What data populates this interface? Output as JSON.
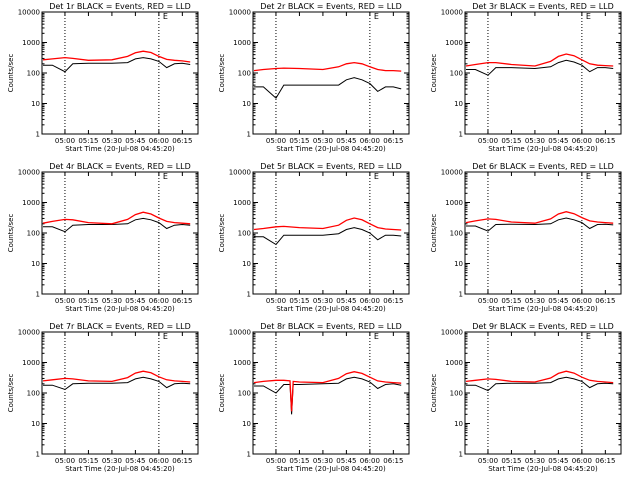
{
  "chart_data": [
    {
      "type": "line",
      "title": "Det 1r BLACK = Events, RED = LLD",
      "xlabel": "Start Time (20-Jul-08 04:45:20)",
      "ylabel": "Counts/sec",
      "yscale": "log",
      "ylim": [
        1,
        10000
      ],
      "yticks": [
        "1",
        "10",
        "100",
        "1000",
        "10000"
      ],
      "xlim": [
        "04:45:20",
        "06:25"
      ],
      "xticks": [
        "05:00",
        "05:15",
        "05:30",
        "05:45",
        "06:00",
        "06:15"
      ],
      "vlines": [
        "05:00",
        "06:00"
      ],
      "marker": "E",
      "x": [
        "04:46",
        "04:52",
        "05:00",
        "05:05",
        "05:15",
        "05:30",
        "05:40",
        "05:45",
        "05:50",
        "05:55",
        "06:00",
        "06:05",
        "06:10",
        "06:15",
        "06:20"
      ],
      "series": [
        {
          "name": "Events",
          "color": "#000000",
          "values": [
            180,
            180,
            110,
            200,
            210,
            210,
            220,
            290,
            320,
            290,
            240,
            150,
            200,
            210,
            190
          ]
        },
        {
          "name": "LLD",
          "color": "#ff0000",
          "values": [
            270,
            290,
            320,
            300,
            260,
            270,
            350,
            460,
            520,
            470,
            350,
            280,
            260,
            250,
            230
          ]
        }
      ]
    },
    {
      "type": "line",
      "title": "Det 2r BLACK = Events, RED = LLD",
      "xlabel": "Start Time (20-Jul-08 04:45:20)",
      "ylabel": "Counts/sec",
      "yscale": "log",
      "ylim": [
        1,
        10000
      ],
      "yticks": [
        "1",
        "10",
        "100",
        "1000",
        "10000"
      ],
      "xlim": [
        "04:45:20",
        "06:25"
      ],
      "xticks": [
        "05:00",
        "05:15",
        "05:30",
        "05:45",
        "06:00",
        "06:15"
      ],
      "vlines": [
        "05:00",
        "06:00"
      ],
      "marker": "E",
      "x": [
        "04:46",
        "04:52",
        "05:00",
        "05:05",
        "05:15",
        "05:30",
        "05:40",
        "05:45",
        "05:50",
        "05:55",
        "06:00",
        "06:05",
        "06:10",
        "06:15",
        "06:20"
      ],
      "series": [
        {
          "name": "Events",
          "color": "#000000",
          "values": [
            35,
            35,
            15,
            40,
            40,
            40,
            40,
            60,
            70,
            60,
            45,
            25,
            35,
            35,
            30
          ]
        },
        {
          "name": "LLD",
          "color": "#ff0000",
          "values": [
            120,
            130,
            140,
            145,
            140,
            130,
            160,
            200,
            220,
            200,
            160,
            130,
            120,
            120,
            115
          ]
        }
      ]
    },
    {
      "type": "line",
      "title": "Det 3r BLACK = Events, RED = LLD",
      "xlabel": "Start Time (20-Jul-08 04:45:20)",
      "ylabel": "Counts/sec",
      "yscale": "log",
      "ylim": [
        1,
        10000
      ],
      "yticks": [
        "1",
        "10",
        "100",
        "1000",
        "10000"
      ],
      "xlim": [
        "04:45:20",
        "06:25"
      ],
      "xticks": [
        "05:00",
        "05:15",
        "05:30",
        "05:45",
        "06:00",
        "06:15"
      ],
      "vlines": [
        "05:00",
        "06:00"
      ],
      "marker": "E",
      "x": [
        "04:46",
        "04:52",
        "05:00",
        "05:05",
        "05:15",
        "05:30",
        "05:40",
        "05:45",
        "05:50",
        "05:55",
        "06:00",
        "06:05",
        "06:10",
        "06:15",
        "06:20"
      ],
      "series": [
        {
          "name": "Events",
          "color": "#000000",
          "values": [
            130,
            130,
            85,
            150,
            150,
            140,
            160,
            220,
            260,
            230,
            180,
            110,
            150,
            150,
            140
          ]
        },
        {
          "name": "LLD",
          "color": "#ff0000",
          "values": [
            170,
            190,
            220,
            220,
            190,
            170,
            240,
            350,
            420,
            370,
            270,
            200,
            180,
            175,
            170
          ]
        }
      ]
    },
    {
      "type": "line",
      "title": "Det 4r BLACK = Events, RED = LLD",
      "xlabel": "Start Time (20-Jul-08 04:45:20)",
      "ylabel": "Counts/sec",
      "yscale": "log",
      "ylim": [
        1,
        10000
      ],
      "yticks": [
        "1",
        "10",
        "100",
        "1000",
        "10000"
      ],
      "xlim": [
        "04:45:20",
        "06:25"
      ],
      "xticks": [
        "05:00",
        "05:15",
        "05:30",
        "05:45",
        "06:00",
        "06:15"
      ],
      "vlines": [
        "05:00",
        "06:00"
      ],
      "marker": "E",
      "x": [
        "04:46",
        "04:52",
        "05:00",
        "05:05",
        "05:15",
        "05:30",
        "05:40",
        "05:45",
        "05:50",
        "05:55",
        "06:00",
        "06:05",
        "06:10",
        "06:15",
        "06:20"
      ],
      "series": [
        {
          "name": "Events",
          "color": "#000000",
          "values": [
            160,
            160,
            110,
            180,
            190,
            190,
            200,
            270,
            300,
            270,
            220,
            140,
            180,
            190,
            180
          ]
        },
        {
          "name": "LLD",
          "color": "#ff0000",
          "values": [
            210,
            240,
            280,
            270,
            220,
            200,
            280,
            400,
            480,
            420,
            310,
            240,
            220,
            210,
            200
          ]
        }
      ]
    },
    {
      "type": "line",
      "title": "Det 5r BLACK = Events, RED = LLD",
      "xlabel": "Start Time (20-Jul-08 04:45:20)",
      "ylabel": "Counts/sec",
      "yscale": "log",
      "ylim": [
        1,
        10000
      ],
      "yticks": [
        "1",
        "10",
        "100",
        "1000",
        "10000"
      ],
      "xlim": [
        "04:45:20",
        "06:25"
      ],
      "xticks": [
        "05:00",
        "05:15",
        "05:30",
        "05:45",
        "06:00",
        "06:15"
      ],
      "vlines": [
        "05:00",
        "06:00"
      ],
      "marker": "E",
      "x": [
        "04:46",
        "04:52",
        "05:00",
        "05:05",
        "05:15",
        "05:30",
        "05:40",
        "05:45",
        "05:50",
        "05:55",
        "06:00",
        "06:05",
        "06:10",
        "06:15",
        "06:20"
      ],
      "series": [
        {
          "name": "Events",
          "color": "#000000",
          "values": [
            75,
            75,
            42,
            85,
            85,
            85,
            95,
            130,
            150,
            130,
            100,
            60,
            85,
            85,
            80
          ]
        },
        {
          "name": "LLD",
          "color": "#ff0000",
          "values": [
            130,
            140,
            160,
            165,
            150,
            140,
            180,
            260,
            310,
            270,
            200,
            150,
            135,
            130,
            125
          ]
        }
      ]
    },
    {
      "type": "line",
      "title": "Det 6r BLACK = Events, RED = LLD",
      "xlabel": "Start Time (20-Jul-08 04:45:20)",
      "ylabel": "Counts/sec",
      "yscale": "log",
      "ylim": [
        1,
        10000
      ],
      "yticks": [
        "1",
        "10",
        "100",
        "1000",
        "10000"
      ],
      "xlim": [
        "04:45:20",
        "06:25"
      ],
      "xticks": [
        "05:00",
        "05:15",
        "05:30",
        "05:45",
        "06:00",
        "06:15"
      ],
      "vlines": [
        "05:00",
        "06:00"
      ],
      "marker": "E",
      "x": [
        "04:46",
        "04:52",
        "05:00",
        "05:05",
        "05:15",
        "05:30",
        "05:40",
        "05:45",
        "05:50",
        "05:55",
        "06:00",
        "06:05",
        "06:10",
        "06:15",
        "06:20"
      ],
      "series": [
        {
          "name": "Events",
          "color": "#000000",
          "values": [
            170,
            170,
            115,
            190,
            195,
            190,
            200,
            270,
            310,
            270,
            220,
            140,
            190,
            195,
            185
          ]
        },
        {
          "name": "LLD",
          "color": "#ff0000",
          "values": [
            220,
            250,
            290,
            280,
            230,
            210,
            290,
            420,
            500,
            430,
            320,
            250,
            230,
            220,
            210
          ]
        }
      ]
    },
    {
      "type": "line",
      "title": "Det 7r BLACK = Events, RED = LLD",
      "xlabel": "Start Time (20-Jul-08 04:45:20)",
      "ylabel": "Counts/sec",
      "yscale": "log",
      "ylim": [
        1,
        10000
      ],
      "yticks": [
        "1",
        "10",
        "100",
        "1000",
        "10000"
      ],
      "xlim": [
        "04:45:20",
        "06:25"
      ],
      "xticks": [
        "05:00",
        "05:15",
        "05:30",
        "05:45",
        "06:00",
        "06:15"
      ],
      "vlines": [
        "05:00",
        "06:00"
      ],
      "marker": "E",
      "x": [
        "04:46",
        "04:52",
        "05:00",
        "05:05",
        "05:15",
        "05:30",
        "05:40",
        "05:45",
        "05:50",
        "05:55",
        "06:00",
        "06:05",
        "06:10",
        "06:15",
        "06:20"
      ],
      "series": [
        {
          "name": "Events",
          "color": "#000000",
          "values": [
            180,
            180,
            130,
            200,
            210,
            210,
            220,
            290,
            330,
            290,
            240,
            150,
            200,
            210,
            200
          ]
        },
        {
          "name": "LLD",
          "color": "#ff0000",
          "values": [
            250,
            270,
            300,
            290,
            250,
            240,
            320,
            450,
            520,
            460,
            340,
            270,
            250,
            240,
            230
          ]
        }
      ]
    },
    {
      "type": "line",
      "title": "Det 8r BLACK = Events, RED = LLD",
      "xlabel": "Start Time (20-Jul-08 04:45:20)",
      "ylabel": "Counts/sec",
      "yscale": "log",
      "ylim": [
        1,
        10000
      ],
      "yticks": [
        "1",
        "10",
        "100",
        "1000",
        "10000"
      ],
      "xlim": [
        "04:45:20",
        "06:25"
      ],
      "xticks": [
        "05:00",
        "05:15",
        "05:30",
        "05:45",
        "06:00",
        "06:15"
      ],
      "vlines": [
        "05:00",
        "06:00"
      ],
      "marker": "E",
      "x": [
        "04:46",
        "04:52",
        "05:00",
        "05:05",
        "05:09",
        "05:10",
        "05:11",
        "05:15",
        "05:30",
        "05:40",
        "05:45",
        "05:50",
        "05:55",
        "06:00",
        "06:05",
        "06:10",
        "06:15",
        "06:20"
      ],
      "series": [
        {
          "name": "Events",
          "color": "#000000",
          "values": [
            170,
            170,
            100,
            190,
            190,
            20,
            190,
            190,
            200,
            210,
            290,
            330,
            290,
            230,
            140,
            190,
            200,
            180
          ]
        },
        {
          "name": "LLD",
          "color": "#ff0000",
          "values": [
            220,
            240,
            260,
            260,
            250,
            25,
            240,
            230,
            220,
            300,
            430,
            500,
            440,
            330,
            250,
            230,
            220,
            210
          ]
        }
      ]
    },
    {
      "type": "line",
      "title": "Det 9r BLACK = Events, RED = LLD",
      "xlabel": "Start Time (20-Jul-08 04:45:20)",
      "ylabel": "Counts/sec",
      "yscale": "log",
      "ylim": [
        1,
        10000
      ],
      "yticks": [
        "1",
        "10",
        "100",
        "1000",
        "10000"
      ],
      "xlim": [
        "04:45:20",
        "06:25"
      ],
      "xticks": [
        "05:00",
        "05:15",
        "05:30",
        "05:45",
        "06:00",
        "06:15"
      ],
      "vlines": [
        "05:00",
        "06:00"
      ],
      "marker": "E",
      "x": [
        "04:46",
        "04:52",
        "05:00",
        "05:05",
        "05:15",
        "05:30",
        "05:40",
        "05:45",
        "05:50",
        "05:55",
        "06:00",
        "06:05",
        "06:10",
        "06:15",
        "06:20"
      ],
      "series": [
        {
          "name": "Events",
          "color": "#000000",
          "values": [
            180,
            180,
            120,
            200,
            210,
            210,
            220,
            290,
            330,
            290,
            240,
            150,
            200,
            210,
            200
          ]
        },
        {
          "name": "LLD",
          "color": "#ff0000",
          "values": [
            240,
            260,
            290,
            280,
            240,
            230,
            310,
            440,
            520,
            450,
            330,
            260,
            240,
            230,
            220
          ]
        }
      ]
    }
  ]
}
